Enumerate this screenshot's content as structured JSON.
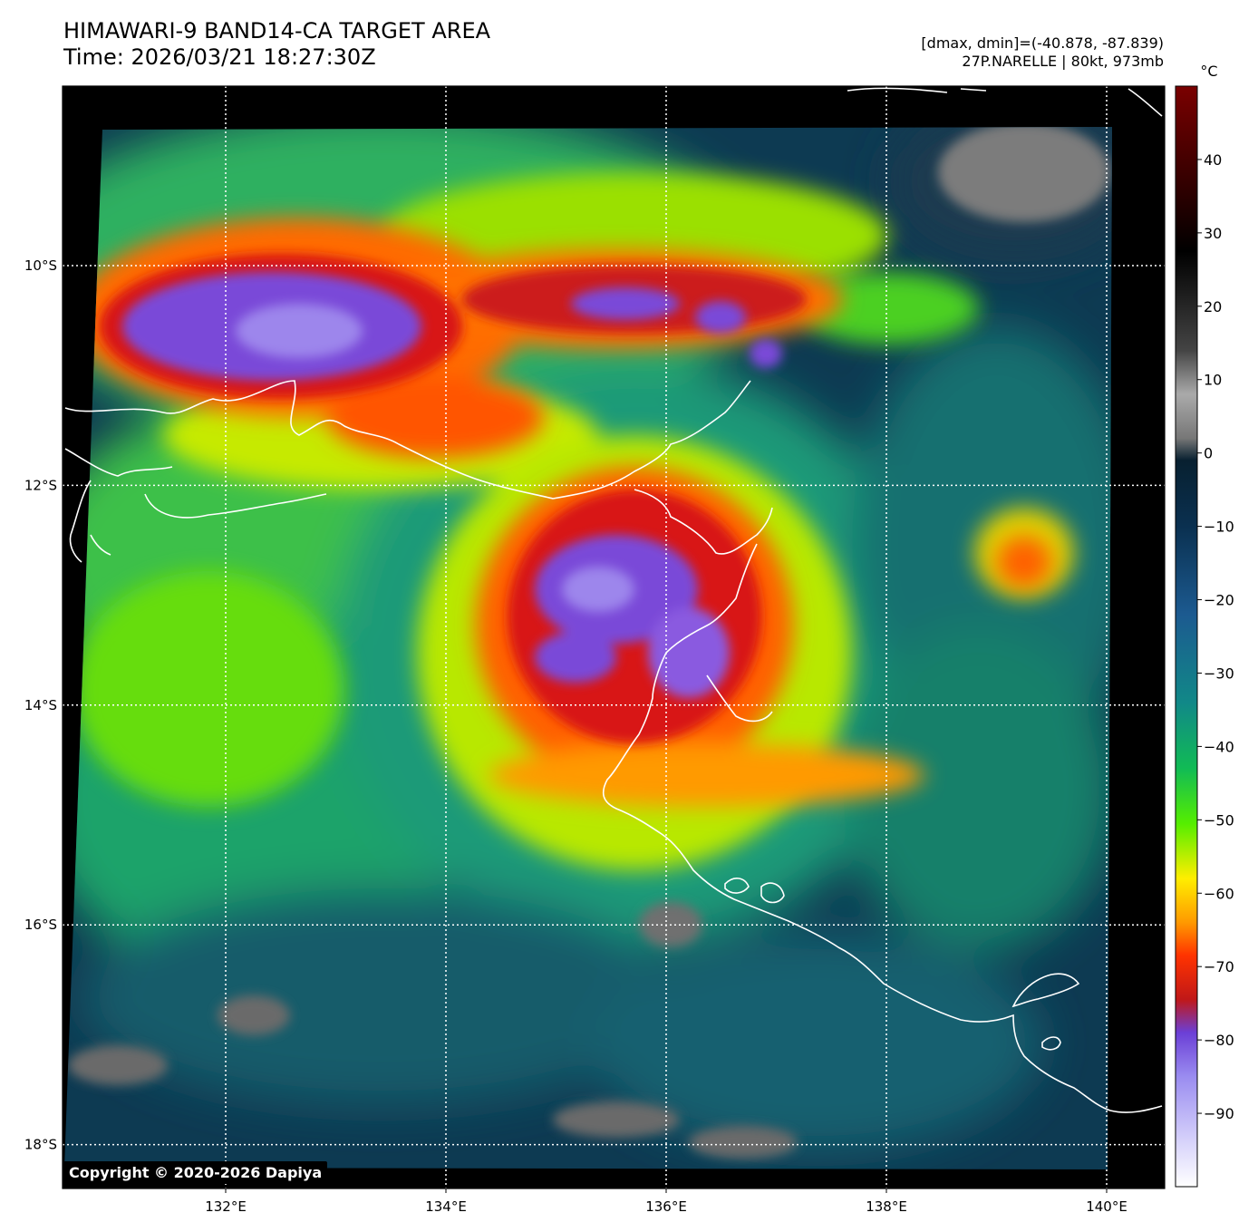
{
  "header": {
    "title_line1": "HIMAWARI-9 BAND14-CA TARGET AREA",
    "title_line2": "Time: 2026/03/21 18:27:30Z",
    "dmax_dmin": "[dmax, dmin]=(-40.878, -87.839)",
    "storm_info": "27P.NARELLE | 80kt, 973mb"
  },
  "map": {
    "lon_range": [
      130.5,
      140.5
    ],
    "lat_range": [
      -18.2,
      -8.2
    ],
    "lon_ticks": [
      {
        "value": 132,
        "label": "132°E"
      },
      {
        "value": 134,
        "label": "134°E"
      },
      {
        "value": 136,
        "label": "136°E"
      },
      {
        "value": 138,
        "label": "138°E"
      },
      {
        "value": 140,
        "label": "140°E"
      }
    ],
    "lat_ticks": [
      {
        "value": -10,
        "label": "10°S"
      },
      {
        "value": -12,
        "label": "12°S"
      },
      {
        "value": -14,
        "label": "14°S"
      },
      {
        "value": -16,
        "label": "16°S"
      },
      {
        "value": -18,
        "label": "18°S"
      }
    ],
    "gridlines": "dotted-white",
    "coastline_color": "#ffffff"
  },
  "colorbar": {
    "unit": "°C",
    "range": [
      -100,
      50
    ],
    "ticks": [
      40,
      30,
      20,
      10,
      0,
      -10,
      -20,
      -30,
      -40,
      -50,
      -60,
      -70,
      -80,
      -90
    ],
    "tick_labels": [
      "40",
      "30",
      "20",
      "10",
      "0",
      "−10",
      "−20",
      "−30",
      "−40",
      "−50",
      "−60",
      "−70",
      "−80",
      "−90"
    ],
    "colors": [
      "#ffffff",
      "#9a8cf0",
      "#6b3fd6",
      "#c01818",
      "#ff3300",
      "#ff9900",
      "#ffee00",
      "#55ee00",
      "#11bb55",
      "#118888",
      "#1c4a80",
      "#0a2a45",
      "#555555",
      "#aaaaaa",
      "#000000",
      "#6a0000"
    ]
  },
  "copyright": "Copyright © 2020-2026 Dapiya"
}
